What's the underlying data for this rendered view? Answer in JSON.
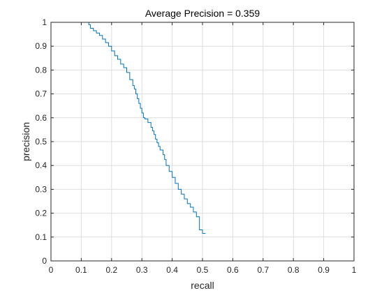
{
  "chart_data": {
    "type": "line",
    "title": "Average Precision = 0.359",
    "xlabel": "recall",
    "ylabel": "precision",
    "xlim": [
      0,
      1
    ],
    "ylim": [
      0,
      1
    ],
    "x_ticks": [
      "0",
      "0.1",
      "0.2",
      "0.3",
      "0.4",
      "0.5",
      "0.6",
      "0.7",
      "0.8",
      "0.9",
      "1"
    ],
    "y_ticks": [
      "0",
      "0.1",
      "0.2",
      "0.3",
      "0.4",
      "0.5",
      "0.6",
      "0.7",
      "0.8",
      "0.9",
      "1"
    ],
    "grid": true,
    "legend": "none",
    "colors": {
      "line": "#0072BD",
      "grid": "#DEDEDE",
      "axis": "#262626"
    },
    "series": [
      {
        "x": [
          0.0,
          0.125,
          0.13,
          0.14,
          0.15,
          0.16,
          0.17,
          0.18,
          0.19,
          0.2,
          0.21,
          0.22,
          0.23,
          0.24,
          0.25,
          0.26,
          0.27,
          0.275,
          0.28,
          0.285,
          0.29,
          0.295,
          0.3,
          0.305,
          0.31,
          0.32,
          0.33,
          0.335,
          0.34,
          0.345,
          0.35,
          0.355,
          0.36,
          0.37,
          0.375,
          0.38,
          0.39,
          0.4,
          0.41,
          0.42,
          0.43,
          0.44,
          0.45,
          0.46,
          0.47,
          0.48,
          0.49,
          0.5,
          0.51
        ],
        "y": [
          1.0,
          1.0,
          0.99,
          0.975,
          0.965,
          0.955,
          0.945,
          0.93,
          0.915,
          0.9,
          0.88,
          0.86,
          0.845,
          0.825,
          0.81,
          0.79,
          0.76,
          0.735,
          0.72,
          0.7,
          0.68,
          0.66,
          0.64,
          0.62,
          0.6,
          0.595,
          0.58,
          0.56,
          0.545,
          0.53,
          0.51,
          0.495,
          0.48,
          0.465,
          0.445,
          0.425,
          0.4,
          0.375,
          0.35,
          0.325,
          0.3,
          0.28,
          0.26,
          0.24,
          0.225,
          0.205,
          0.185,
          0.13,
          0.115
        ]
      }
    ]
  }
}
